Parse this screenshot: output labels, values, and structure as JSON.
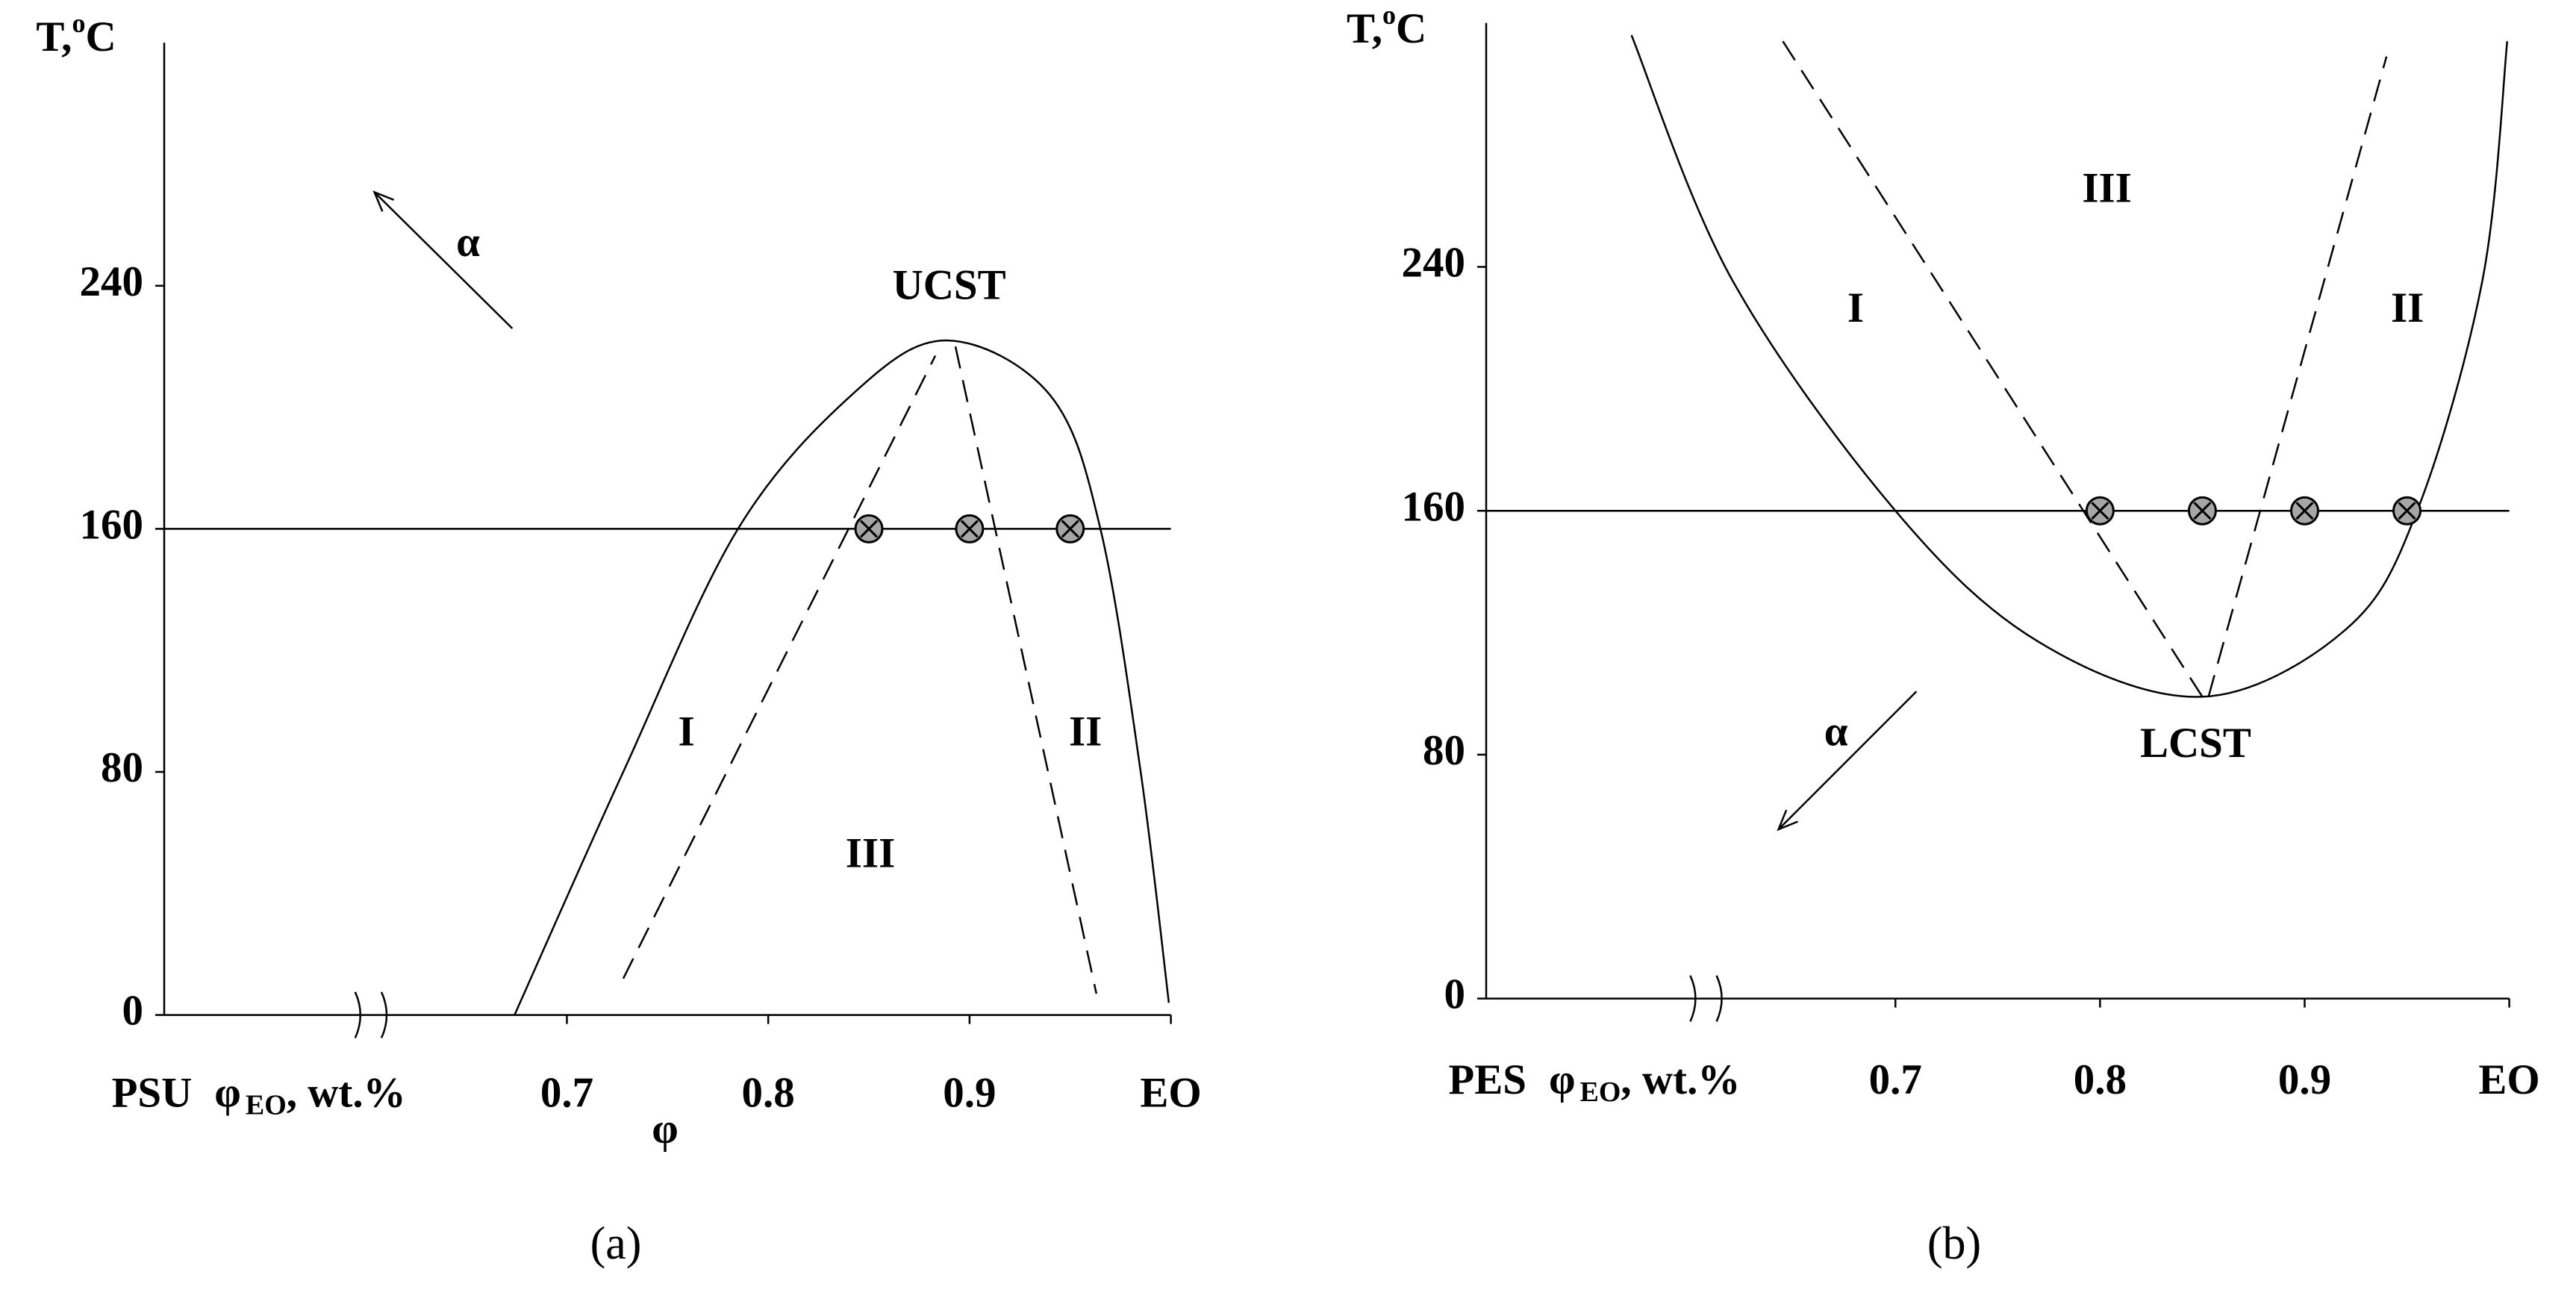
{
  "chart_data": [
    {
      "type": "phase-diagram",
      "caption": "(a)",
      "ylabel": {
        "text": "T,",
        "superscript": "o",
        "unit": "C"
      },
      "xlabel": {
        "material": "PSU",
        "symbol": "φ",
        "subscript": "EO",
        "unit": ", wt.%"
      },
      "xlim": [
        0.5,
        1.0
      ],
      "ylim": [
        0,
        320
      ],
      "xticks": [
        0.7,
        0.8,
        0.9,
        {
          "value": 1.0,
          "label": "EO"
        }
      ],
      "yticks": [
        0,
        80,
        160,
        240
      ],
      "hline": 160,
      "series": [
        {
          "style": "solid",
          "color": "#000000",
          "x": [
            0.674,
            0.728,
            0.785,
            0.843,
            0.889,
            0.94,
            0.965,
            0.985,
            0.999
          ],
          "values": [
            0,
            80,
            160,
            205,
            222,
            204,
            160,
            80,
            4
          ]
        },
        {
          "style": "dashed",
          "color": "#000000",
          "x": [
            0.728,
            0.883
          ],
          "values": [
            12,
            217
          ]
        },
        {
          "style": "dashed",
          "color": "#000000",
          "x": [
            0.893,
            0.963
          ],
          "values": [
            220,
            7
          ]
        },
        {
          "style": "marker",
          "color": "#a6a6a6",
          "x": [
            0.85,
            0.9,
            0.95
          ],
          "values": [
            160,
            160,
            160
          ]
        }
      ],
      "annotations": [
        "UCST",
        "I",
        "II",
        "III",
        "α",
        "φ"
      ]
    },
    {
      "type": "phase-diagram",
      "caption": "(b)",
      "ylabel": {
        "text": "T,",
        "superscript": "o",
        "unit": "C"
      },
      "xlabel": {
        "material": "PES",
        "symbol": "φ",
        "subscript": "EO",
        "unit": ", wt.%"
      },
      "xlim": [
        0.5,
        1.0
      ],
      "ylim": [
        0,
        320
      ],
      "xticks": [
        0.7,
        0.8,
        0.9,
        {
          "value": 1.0,
          "label": "EO"
        }
      ],
      "yticks": [
        0,
        80,
        160,
        240
      ],
      "hline": 160,
      "series": [
        {
          "style": "solid",
          "color": "#000000",
          "x": [
            0.571,
            0.62,
            0.7,
            0.77,
            0.85,
            0.92,
            0.955,
            0.987,
            0.999
          ],
          "values": [
            316,
            236,
            160,
            117,
            99,
            121,
            160,
            236,
            314
          ]
        },
        {
          "style": "dashed",
          "color": "#000000",
          "x": [
            0.645,
            0.85
          ],
          "values": [
            314,
            99
          ]
        },
        {
          "style": "dashed",
          "color": "#000000",
          "x": [
            0.853,
            0.94
          ],
          "values": [
            99,
            309
          ]
        },
        {
          "style": "marker",
          "color": "#a6a6a6",
          "x": [
            0.8,
            0.85,
            0.9,
            0.95
          ],
          "values": [
            160,
            160,
            160,
            160
          ]
        }
      ],
      "annotations": [
        "III",
        "I",
        "II",
        "LCST",
        "α"
      ]
    }
  ]
}
